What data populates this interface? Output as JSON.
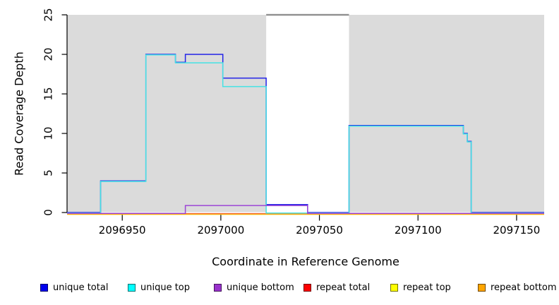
{
  "chart_data": {
    "type": "line",
    "subtype": "step-coverage",
    "title": "",
    "xlabel": "Coordinate in Reference Genome",
    "ylabel": "Read Coverage Depth",
    "xlim": [
      2096922,
      2097164
    ],
    "ylim": [
      0,
      25
    ],
    "x_ticks": [
      2096950,
      2097000,
      2097050,
      2097100,
      2097150
    ],
    "y_ticks": [
      0,
      5,
      10,
      15,
      20,
      25
    ],
    "grid": false,
    "legend_position": "bottom",
    "shaded_regions": [
      {
        "x0": 2096922,
        "x1": 2097023,
        "color": "#dbdbdb"
      },
      {
        "x0": 2097065,
        "x1": 2097164,
        "color": "#dbdbdb"
      }
    ],
    "offscale_cap_marker": {
      "x0": 2097023,
      "x1": 2097065,
      "y": 25,
      "color": "#8f8f8f"
    },
    "series": [
      {
        "name": "repeat total",
        "line_color": "#e02545",
        "points": [
          [
            2096922,
            0
          ],
          [
            2097164,
            0
          ]
        ]
      },
      {
        "name": "repeat top",
        "line_color": "#eded22",
        "points": [
          [
            2096922,
            0
          ],
          [
            2097164,
            0
          ]
        ]
      },
      {
        "name": "repeat bottom",
        "line_color": "#ff9718",
        "points": [
          [
            2096922,
            0
          ],
          [
            2097164,
            0
          ]
        ]
      },
      {
        "name": "unique total",
        "line_color": "#2323e8",
        "points": [
          [
            2096922,
            0
          ],
          [
            2096939,
            4
          ],
          [
            2096962,
            20
          ],
          [
            2096977,
            19
          ],
          [
            2096982,
            20
          ],
          [
            2097001,
            17
          ],
          [
            2097023,
            1
          ],
          [
            2097044,
            0
          ],
          [
            2097065,
            11
          ],
          [
            2097123,
            10
          ],
          [
            2097125,
            9
          ],
          [
            2097127,
            0
          ],
          [
            2097164,
            0
          ]
        ]
      },
      {
        "name": "unique top",
        "line_color": "#45e2e4",
        "points": [
          [
            2096922,
            0
          ],
          [
            2096939,
            4
          ],
          [
            2096962,
            20
          ],
          [
            2096977,
            19
          ],
          [
            2097001,
            16
          ],
          [
            2097023,
            0
          ],
          [
            2097065,
            11
          ],
          [
            2097123,
            10
          ],
          [
            2097125,
            9
          ],
          [
            2097127,
            0
          ],
          [
            2097164,
            0
          ]
        ]
      },
      {
        "name": "unique bottom",
        "line_color": "#9c45d5",
        "points": [
          [
            2096922,
            0
          ],
          [
            2096982,
            1
          ],
          [
            2097044,
            0
          ],
          [
            2097164,
            0
          ]
        ]
      }
    ],
    "legend": [
      {
        "label": "unique total",
        "color": "#0000ee"
      },
      {
        "label": "unique top",
        "color": "#00ffff"
      },
      {
        "label": "unique bottom",
        "color": "#9932cc"
      },
      {
        "label": "repeat total",
        "color": "#ff0000"
      },
      {
        "label": "repeat top",
        "color": "#ffff00"
      },
      {
        "label": "repeat bottom",
        "color": "#ffa500"
      }
    ]
  }
}
